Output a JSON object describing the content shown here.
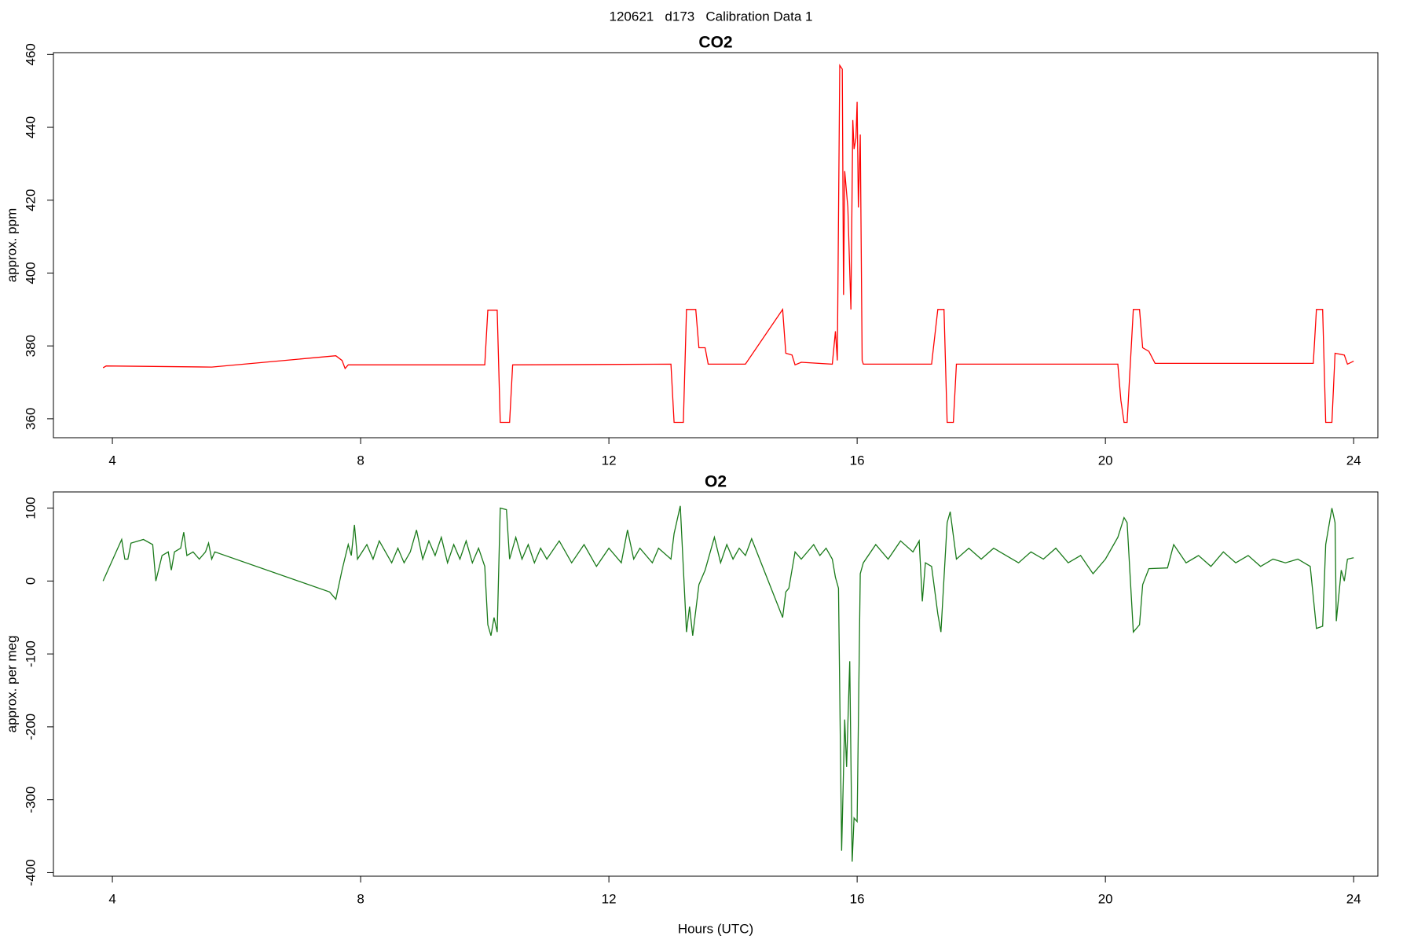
{
  "title": "120621   d173   Calibration Data 1",
  "chart_data": [
    {
      "type": "line",
      "title": "CO2",
      "ylabel": "approx. ppm",
      "xlim": [
        3.05,
        24.39
      ],
      "xticks": [
        4,
        8,
        12,
        16,
        20,
        24
      ],
      "ylim": [
        354.8,
        460.5
      ],
      "yticks": [
        360,
        380,
        400,
        420,
        440,
        460
      ],
      "series": [
        {
          "name": "CO2",
          "color": "#ff0000",
          "x": [
            3.85,
            3.9,
            5.6,
            7.6,
            7.7,
            7.75,
            7.8,
            10.0,
            10.05,
            10.2,
            10.25,
            10.4,
            10.45,
            13.0,
            13.05,
            13.2,
            13.25,
            13.4,
            13.45,
            13.55,
            13.6,
            14.2,
            14.8,
            14.85,
            14.95,
            15.0,
            15.1,
            15.6,
            15.65,
            15.68,
            15.72,
            15.76,
            15.78,
            15.8,
            15.85,
            15.9,
            15.93,
            15.95,
            15.98,
            16.0,
            16.02,
            16.05,
            16.08,
            16.1,
            17.2,
            17.3,
            17.4,
            17.45,
            17.55,
            17.6,
            20.2,
            20.25,
            20.3,
            20.35,
            20.45,
            20.55,
            20.6,
            20.7,
            20.8,
            23.35,
            23.4,
            23.5,
            23.55,
            23.65,
            23.7,
            23.85,
            23.9,
            24.0
          ],
          "values": [
            374,
            374.5,
            374.2,
            377.3,
            376,
            373.8,
            374.8,
            374.8,
            389.8,
            389.8,
            359,
            359,
            374.8,
            375,
            359,
            359,
            390,
            390,
            379.5,
            379.5,
            375,
            375,
            390,
            378,
            377.5,
            374.8,
            375.5,
            375,
            384,
            376,
            457,
            456,
            394,
            428,
            418,
            390,
            442,
            434,
            437,
            447,
            418,
            438,
            376,
            375,
            375,
            390,
            390,
            359,
            359,
            375,
            375,
            365,
            359,
            359,
            390,
            390,
            379.5,
            378.5,
            375.2,
            375.2,
            390,
            390,
            359,
            359,
            378,
            377.5,
            375,
            375.8
          ]
        }
      ]
    },
    {
      "type": "line",
      "title": "O2",
      "ylabel": "approx. per meg",
      "xlabel": "Hours (UTC)",
      "xlim": [
        3.05,
        24.39
      ],
      "xticks": [
        4,
        8,
        12,
        16,
        20,
        24
      ],
      "ylim": [
        -404.9,
        122.2
      ],
      "yticks": [
        -400,
        -300,
        -200,
        -100,
        0,
        100
      ],
      "series": [
        {
          "name": "O2",
          "color": "#1a7a1a",
          "x": [
            3.85,
            4.15,
            4.2,
            4.25,
            4.3,
            4.5,
            4.65,
            4.7,
            4.8,
            4.9,
            4.95,
            5.0,
            5.1,
            5.15,
            5.2,
            5.3,
            5.4,
            5.5,
            5.55,
            5.6,
            5.65,
            7.5,
            7.6,
            7.7,
            7.8,
            7.85,
            7.9,
            7.95,
            8.1,
            8.2,
            8.3,
            8.4,
            8.5,
            8.6,
            8.7,
            8.8,
            8.9,
            9.0,
            9.1,
            9.2,
            9.3,
            9.4,
            9.5,
            9.6,
            9.7,
            9.8,
            9.9,
            10.0,
            10.05,
            10.1,
            10.15,
            10.2,
            10.25,
            10.35,
            10.4,
            10.5,
            10.6,
            10.7,
            10.8,
            10.9,
            11.0,
            11.2,
            11.4,
            11.6,
            11.8,
            12.0,
            12.2,
            12.3,
            12.4,
            12.5,
            12.7,
            12.8,
            13.0,
            13.05,
            13.15,
            13.25,
            13.3,
            13.35,
            13.45,
            13.55,
            13.7,
            13.8,
            13.9,
            14.0,
            14.1,
            14.2,
            14.3,
            14.8,
            14.85,
            14.9,
            15.0,
            15.1,
            15.3,
            15.4,
            15.5,
            15.6,
            15.65,
            15.7,
            15.75,
            15.8,
            15.83,
            15.88,
            15.92,
            15.95,
            16.0,
            16.05,
            16.1,
            16.3,
            16.5,
            16.7,
            16.9,
            17.0,
            17.05,
            17.1,
            17.2,
            17.3,
            17.35,
            17.45,
            17.5,
            17.6,
            17.8,
            18.0,
            18.2,
            18.4,
            18.6,
            18.8,
            19.0,
            19.2,
            19.4,
            19.6,
            19.8,
            20.0,
            20.2,
            20.3,
            20.35,
            20.45,
            20.55,
            20.6,
            20.7,
            21.0,
            21.1,
            21.3,
            21.5,
            21.7,
            21.9,
            22.1,
            22.3,
            22.5,
            22.7,
            22.9,
            23.1,
            23.3,
            23.4,
            23.5,
            23.55,
            23.65,
            23.7,
            23.72,
            23.8,
            23.85,
            23.9,
            24.0
          ],
          "values": [
            0,
            57,
            30,
            30,
            52,
            57,
            50,
            0,
            35,
            40,
            15,
            40,
            45,
            67,
            35,
            40,
            30,
            40,
            52,
            30,
            40,
            -15,
            -25,
            15,
            50,
            35,
            77,
            30,
            50,
            30,
            55,
            40,
            25,
            45,
            25,
            40,
            70,
            30,
            55,
            35,
            60,
            25,
            50,
            30,
            55,
            25,
            45,
            20,
            -60,
            -75,
            -50,
            -70,
            100,
            98,
            30,
            60,
            30,
            50,
            25,
            45,
            30,
            55,
            25,
            50,
            20,
            45,
            25,
            70,
            30,
            45,
            25,
            45,
            30,
            65,
            103,
            -70,
            -35,
            -75,
            -5,
            15,
            60,
            25,
            50,
            30,
            45,
            35,
            58,
            -50,
            -15,
            -10,
            40,
            30,
            50,
            35,
            45,
            30,
            5,
            -10,
            -370,
            -190,
            -255,
            -110,
            -385,
            -325,
            -330,
            10,
            25,
            50,
            30,
            55,
            40,
            55,
            -28,
            25,
            20,
            -45,
            -70,
            80,
            95,
            30,
            45,
            30,
            45,
            35,
            25,
            40,
            30,
            45,
            25,
            35,
            10,
            30,
            60,
            87,
            80,
            -70,
            -60,
            -5,
            17,
            18,
            50,
            25,
            35,
            20,
            40,
            25,
            35,
            20,
            30,
            25,
            30,
            20,
            -65,
            -62,
            50,
            100,
            80,
            -55,
            15,
            0,
            30,
            32
          ]
        }
      ]
    }
  ]
}
